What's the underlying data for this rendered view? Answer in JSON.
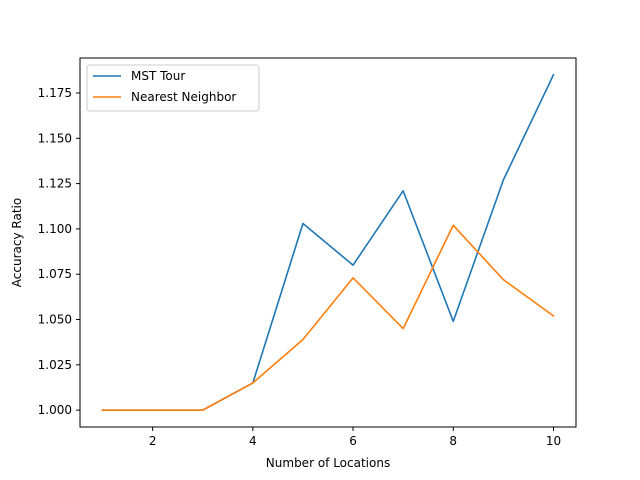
{
  "chart_data": {
    "type": "line",
    "title": "",
    "xlabel": "Number of Locations",
    "ylabel": "Accuracy Ratio",
    "xlim": [
      0.55,
      10.45
    ],
    "ylim": [
      0.9907,
      1.1943
    ],
    "xticks": [
      2,
      4,
      6,
      8,
      10
    ],
    "yticks": [
      1.0,
      1.025,
      1.05,
      1.075,
      1.1,
      1.125,
      1.15,
      1.175
    ],
    "ytick_labels": [
      "1.000",
      "1.025",
      "1.050",
      "1.075",
      "1.100",
      "1.125",
      "1.150",
      "1.175"
    ],
    "grid": false,
    "legend": "top-left",
    "x": [
      1,
      2,
      3,
      4,
      5,
      6,
      7,
      8,
      9,
      10
    ],
    "series": [
      {
        "name": "MST Tour",
        "color": "#1f77b4",
        "values": [
          1.0,
          1.0,
          1.0,
          1.015,
          1.103,
          1.08,
          1.121,
          1.049,
          1.127,
          1.185
        ]
      },
      {
        "name": "Nearest Neighbor",
        "color": "#ff7f0e",
        "values": [
          1.0,
          1.0,
          1.0,
          1.015,
          1.039,
          1.073,
          1.045,
          1.102,
          1.072,
          1.052
        ]
      }
    ]
  }
}
